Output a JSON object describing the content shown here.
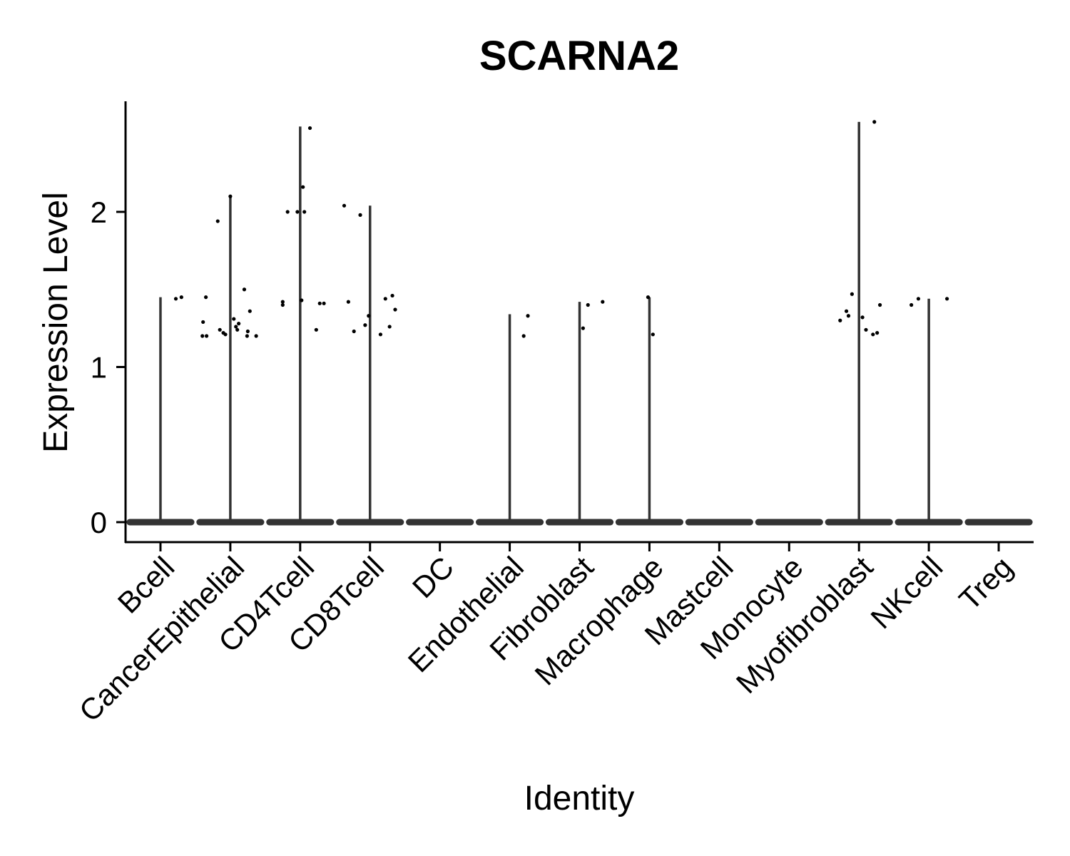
{
  "chart_data": {
    "type": "violin",
    "title": "SCARNA2",
    "xlabel": "Identity",
    "ylabel": "Expression Level",
    "ylim": [
      -0.13,
      2.72
    ],
    "yticks": [
      0,
      1,
      2
    ],
    "grid": false,
    "legend": "none",
    "categories": [
      "Bcell",
      "CancerEpithelial",
      "CD4Tcell",
      "CD8Tcell",
      "DC",
      "Endothelial",
      "Fibroblast",
      "Macrophage",
      "Mastcell",
      "Monocyte",
      "Myofibroblast",
      "NKcell",
      "Treg"
    ],
    "violin_max": [
      1.45,
      2.1,
      2.55,
      2.04,
      0,
      1.34,
      1.42,
      1.45,
      0,
      0,
      2.58,
      1.44,
      0
    ],
    "points": [
      {
        "category": "Bcell",
        "jitter": 0.22,
        "y": 1.44
      },
      {
        "category": "Bcell",
        "jitter": 0.3,
        "y": 1.45
      },
      {
        "category": "CancerEpithelial",
        "jitter": -0.18,
        "y": 1.94
      },
      {
        "category": "CancerEpithelial",
        "jitter": -0.35,
        "y": 1.45
      },
      {
        "category": "CancerEpithelial",
        "jitter": -0.39,
        "y": 1.29
      },
      {
        "category": "CancerEpithelial",
        "jitter": -0.4,
        "y": 1.2
      },
      {
        "category": "CancerEpithelial",
        "jitter": -0.34,
        "y": 1.2
      },
      {
        "category": "CancerEpithelial",
        "jitter": -0.15,
        "y": 1.24
      },
      {
        "category": "CancerEpithelial",
        "jitter": -0.1,
        "y": 1.22
      },
      {
        "category": "CancerEpithelial",
        "jitter": -0.07,
        "y": 1.21
      },
      {
        "category": "CancerEpithelial",
        "jitter": 0.05,
        "y": 1.31
      },
      {
        "category": "CancerEpithelial",
        "jitter": 0.08,
        "y": 1.26
      },
      {
        "category": "CancerEpithelial",
        "jitter": 0.12,
        "y": 1.28
      },
      {
        "category": "CancerEpithelial",
        "jitter": 0.1,
        "y": 1.24
      },
      {
        "category": "CancerEpithelial",
        "jitter": 0.2,
        "y": 1.5
      },
      {
        "category": "CancerEpithelial",
        "jitter": 0.28,
        "y": 1.36
      },
      {
        "category": "CancerEpithelial",
        "jitter": 0.25,
        "y": 1.23
      },
      {
        "category": "CancerEpithelial",
        "jitter": 0.24,
        "y": 1.2
      },
      {
        "category": "CancerEpithelial",
        "jitter": 0.37,
        "y": 1.2
      },
      {
        "category": "CancerEpithelial",
        "jitter": 0.0,
        "y": 2.1
      },
      {
        "category": "CD4Tcell",
        "jitter": 0.14,
        "y": 2.54
      },
      {
        "category": "CD4Tcell",
        "jitter": 0.04,
        "y": 2.16
      },
      {
        "category": "CD4Tcell",
        "jitter": -0.18,
        "y": 2.0
      },
      {
        "category": "CD4Tcell",
        "jitter": -0.04,
        "y": 2.0
      },
      {
        "category": "CD4Tcell",
        "jitter": 0.06,
        "y": 2.0
      },
      {
        "category": "CD4Tcell",
        "jitter": -0.25,
        "y": 1.42
      },
      {
        "category": "CD4Tcell",
        "jitter": -0.25,
        "y": 1.4
      },
      {
        "category": "CD4Tcell",
        "jitter": 0.02,
        "y": 1.43
      },
      {
        "category": "CD4Tcell",
        "jitter": 0.28,
        "y": 1.41
      },
      {
        "category": "CD4Tcell",
        "jitter": 0.34,
        "y": 1.41
      },
      {
        "category": "CD4Tcell",
        "jitter": 0.23,
        "y": 1.24
      },
      {
        "category": "CD8Tcell",
        "jitter": -0.37,
        "y": 2.04
      },
      {
        "category": "CD8Tcell",
        "jitter": -0.14,
        "y": 1.98
      },
      {
        "category": "CD8Tcell",
        "jitter": -0.31,
        "y": 1.42
      },
      {
        "category": "CD8Tcell",
        "jitter": -0.23,
        "y": 1.23
      },
      {
        "category": "CD8Tcell",
        "jitter": -0.07,
        "y": 1.27
      },
      {
        "category": "CD8Tcell",
        "jitter": -0.02,
        "y": 1.33
      },
      {
        "category": "CD8Tcell",
        "jitter": 0.15,
        "y": 1.21
      },
      {
        "category": "CD8Tcell",
        "jitter": 0.22,
        "y": 1.44
      },
      {
        "category": "CD8Tcell",
        "jitter": 0.32,
        "y": 1.46
      },
      {
        "category": "CD8Tcell",
        "jitter": 0.28,
        "y": 1.26
      },
      {
        "category": "CD8Tcell",
        "jitter": 0.36,
        "y": 1.37
      },
      {
        "category": "Endothelial",
        "jitter": 0.2,
        "y": 1.2
      },
      {
        "category": "Endothelial",
        "jitter": 0.26,
        "y": 1.33
      },
      {
        "category": "Fibroblast",
        "jitter": 0.05,
        "y": 1.25
      },
      {
        "category": "Fibroblast",
        "jitter": 0.12,
        "y": 1.4
      },
      {
        "category": "Fibroblast",
        "jitter": 0.33,
        "y": 1.42
      },
      {
        "category": "Macrophage",
        "jitter": -0.02,
        "y": 1.45
      },
      {
        "category": "Macrophage",
        "jitter": 0.05,
        "y": 1.21
      },
      {
        "category": "Myofibroblast",
        "jitter": -0.27,
        "y": 1.3
      },
      {
        "category": "Myofibroblast",
        "jitter": -0.18,
        "y": 1.36
      },
      {
        "category": "Myofibroblast",
        "jitter": -0.15,
        "y": 1.33
      },
      {
        "category": "Myofibroblast",
        "jitter": -0.1,
        "y": 1.47
      },
      {
        "category": "Myofibroblast",
        "jitter": 0.05,
        "y": 1.32
      },
      {
        "category": "Myofibroblast",
        "jitter": 0.1,
        "y": 1.24
      },
      {
        "category": "Myofibroblast",
        "jitter": 0.2,
        "y": 1.21
      },
      {
        "category": "Myofibroblast",
        "jitter": 0.26,
        "y": 1.22
      },
      {
        "category": "Myofibroblast",
        "jitter": 0.3,
        "y": 1.4
      },
      {
        "category": "Myofibroblast",
        "jitter": 0.22,
        "y": 2.58
      },
      {
        "category": "NKcell",
        "jitter": -0.25,
        "y": 1.4
      },
      {
        "category": "NKcell",
        "jitter": -0.15,
        "y": 1.44
      },
      {
        "category": "NKcell",
        "jitter": 0.26,
        "y": 1.44
      }
    ]
  }
}
